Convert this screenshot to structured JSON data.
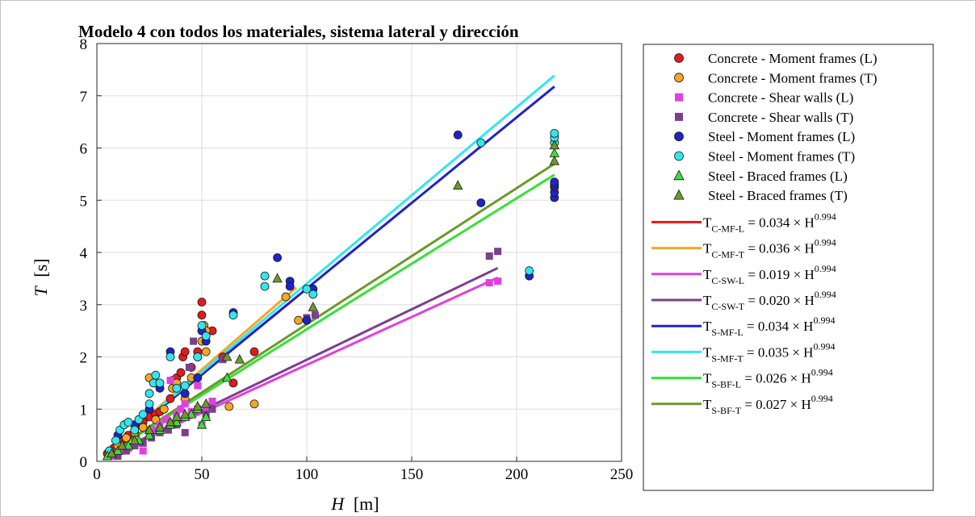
{
  "chart_data": {
    "type": "scatter",
    "title": "Modelo 4 con todos los materiales, sistema lateral y dirección",
    "xlabel_var": "H",
    "xlabel_unit": "[m]",
    "ylabel_var": "T",
    "ylabel_unit": "[s]",
    "xlim": [
      0,
      250
    ],
    "ylim": [
      0,
      8
    ],
    "xticks": [
      "0",
      "50",
      "100",
      "150",
      "200",
      "250"
    ],
    "yticks": [
      "0",
      "1",
      "2",
      "3",
      "4",
      "5",
      "6",
      "7",
      "8"
    ],
    "grid": true,
    "legend_position": "right",
    "exponent": 0.994,
    "series": [
      {
        "name": "Concrete - Moment frames (L)",
        "marker": "circle",
        "color": "#e31a1c",
        "x": [
          5,
          8,
          10,
          12,
          15,
          18,
          20,
          22,
          25,
          28,
          30,
          32,
          35,
          36,
          38,
          40,
          41,
          42,
          45,
          48,
          50,
          50,
          51,
          52,
          55,
          60,
          65,
          75
        ],
        "y": [
          0.15,
          0.25,
          0.35,
          0.4,
          0.5,
          0.55,
          0.7,
          0.75,
          0.85,
          0.9,
          0.95,
          1.0,
          1.2,
          1.55,
          1.6,
          1.7,
          2.0,
          2.1,
          1.8,
          2.1,
          3.05,
          2.8,
          2.6,
          2.5,
          2.5,
          2.0,
          1.5,
          2.1
        ]
      },
      {
        "name": "Concrete - Moment frames (T)",
        "marker": "circle",
        "color": "#f5a623",
        "x": [
          6,
          10,
          14,
          18,
          22,
          25,
          28,
          32,
          36,
          38,
          42,
          45,
          48,
          50,
          51,
          52,
          52,
          63,
          75,
          90,
          96
        ],
        "y": [
          0.2,
          0.3,
          0.45,
          0.55,
          0.65,
          1.6,
          0.8,
          1.0,
          1.4,
          1.5,
          1.2,
          1.6,
          2.0,
          2.3,
          2.6,
          2.1,
          2.5,
          1.05,
          1.1,
          3.15,
          2.7
        ]
      },
      {
        "name": "Concrete - Shear walls (L)",
        "marker": "square",
        "color": "#e040e0",
        "x": [
          8,
          10,
          12,
          15,
          18,
          20,
          22,
          25,
          28,
          30,
          33,
          35,
          38,
          40,
          42,
          45,
          48,
          50,
          52,
          55,
          187,
          191
        ],
        "y": [
          0.1,
          0.15,
          0.2,
          0.25,
          0.3,
          0.35,
          0.2,
          0.5,
          0.6,
          0.7,
          0.8,
          1.55,
          0.9,
          1.0,
          1.1,
          0.95,
          1.45,
          0.7,
          1.0,
          1.15,
          3.42,
          3.45
        ]
      },
      {
        "name": "Concrete - Shear walls (T)",
        "marker": "square",
        "color": "#7b3f8f",
        "x": [
          10,
          14,
          18,
          22,
          26,
          30,
          34,
          38,
          42,
          44,
          46,
          48,
          52,
          55,
          60,
          100,
          104,
          187,
          191
        ],
        "y": [
          0.1,
          0.2,
          0.3,
          0.35,
          0.45,
          0.55,
          0.6,
          0.7,
          0.55,
          1.8,
          2.3,
          1.0,
          0.9,
          1.0,
          1.95,
          2.75,
          2.8,
          3.93,
          4.02
        ]
      },
      {
        "name": "Steel - Moment frames (L)",
        "marker": "circle",
        "color": "#1f23c9",
        "x": [
          10,
          18,
          25,
          30,
          35,
          42,
          48,
          50,
          52,
          65,
          86,
          92,
          92,
          100,
          103,
          172,
          183,
          206,
          218,
          218,
          218,
          218,
          218
        ],
        "y": [
          0.5,
          0.7,
          1.0,
          1.4,
          2.1,
          1.3,
          1.6,
          2.5,
          2.3,
          2.85,
          3.9,
          3.45,
          3.35,
          2.7,
          3.3,
          6.25,
          4.95,
          3.55,
          5.05,
          5.15,
          5.25,
          5.3,
          5.35
        ]
      },
      {
        "name": "Steel - Moment frames (T)",
        "marker": "circle",
        "color": "#33e6ee",
        "x": [
          6,
          9,
          11,
          13,
          15,
          18,
          20,
          22,
          25,
          25,
          27,
          28,
          30,
          35,
          38,
          42,
          48,
          50,
          52,
          65,
          80,
          80,
          100,
          103,
          183,
          206,
          218,
          218,
          218
        ],
        "y": [
          0.2,
          0.4,
          0.6,
          0.7,
          0.75,
          0.6,
          0.8,
          0.9,
          1.1,
          1.3,
          1.5,
          1.65,
          1.5,
          2.0,
          1.4,
          1.45,
          2.0,
          2.6,
          2.4,
          2.8,
          3.55,
          3.35,
          3.3,
          3.2,
          6.1,
          3.65,
          6.1,
          6.2,
          6.28
        ]
      },
      {
        "name": "Steel - Braced frames (L)",
        "marker": "triangle",
        "color": "#38e038",
        "x": [
          5,
          10,
          15,
          20,
          25,
          30,
          35,
          38,
          42,
          45,
          48,
          50,
          52,
          62,
          218
        ],
        "y": [
          0.1,
          0.2,
          0.3,
          0.4,
          0.5,
          0.6,
          0.7,
          0.75,
          0.85,
          0.9,
          1.0,
          0.7,
          0.85,
          1.6,
          5.9
        ]
      },
      {
        "name": "Steel - Braced frames (T)",
        "marker": "triangle",
        "color": "#6b9a2c",
        "x": [
          7,
          12,
          18,
          25,
          30,
          35,
          38,
          42,
          48,
          52,
          62,
          68,
          86,
          103,
          172,
          218,
          218
        ],
        "y": [
          0.15,
          0.3,
          0.4,
          0.6,
          0.65,
          0.75,
          0.85,
          0.9,
          1.05,
          1.1,
          2.0,
          1.95,
          3.5,
          2.95,
          5.28,
          5.75,
          6.05
        ]
      }
    ],
    "fits": [
      {
        "name_sub": "C-MF-L",
        "coef": "0.034",
        "a": 0.034,
        "x_range": [
          4,
          95
        ],
        "color": "#e31a1c"
      },
      {
        "name_sub": "C-MF-T",
        "coef": "0.036",
        "a": 0.036,
        "x_range": [
          4,
          95
        ],
        "color": "#f5a623"
      },
      {
        "name_sub": "C-SW-L",
        "coef": "0.019",
        "a": 0.019,
        "x_range": [
          4,
          191
        ],
        "color": "#e040e0"
      },
      {
        "name_sub": "C-SW-T",
        "coef": "0.020",
        "a": 0.02,
        "x_range": [
          4,
          191
        ],
        "color": "#7b3f8f"
      },
      {
        "name_sub": "S-MF-L",
        "coef": "0.034",
        "a": 0.034,
        "x_range": [
          4,
          218
        ],
        "color": "#1f23c9"
      },
      {
        "name_sub": "S-MF-T",
        "coef": "0.035",
        "a": 0.035,
        "x_range": [
          4,
          218
        ],
        "color": "#33e6ee"
      },
      {
        "name_sub": "S-BF-L",
        "coef": "0.026",
        "a": 0.026,
        "x_range": [
          4,
          218
        ],
        "color": "#38e038"
      },
      {
        "name_sub": "S-BF-T",
        "coef": "0.027",
        "a": 0.027,
        "x_range": [
          4,
          218
        ],
        "color": "#6b9a2c"
      }
    ],
    "fit_label": {
      "lhs": "T",
      "rhs_var": "H",
      "times": "×",
      "equals": "=",
      "exponent_text": "0.994"
    }
  }
}
